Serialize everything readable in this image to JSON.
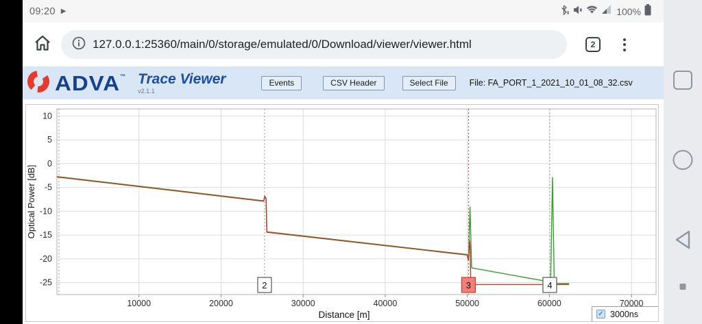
{
  "status_bar": {
    "time": "09:20",
    "play_glyph": "▶",
    "battery_percent": "100%",
    "icons": [
      "bluetooth-disabled-icon",
      "vibrate-mute-icon",
      "wifi-icon",
      "cell-signal-icon",
      "battery-icon"
    ]
  },
  "browser": {
    "url": "127.0.0.1:25360/main/0/storage/emulated/0/Download/viewer/viewer.html",
    "tab_count": "2"
  },
  "app_header": {
    "brand": "ADVA",
    "brand_tm": "™",
    "title": "Trace Viewer",
    "version": "v2.1.1",
    "buttons": [
      {
        "label": "Events"
      },
      {
        "label": "CSV Header"
      },
      {
        "label": "Select File"
      }
    ],
    "file_label": "File: FA_PORT_1_2021_10_01_08_32.csv",
    "background": "#d9e6f6",
    "brand_color": "#16418c",
    "logo_color": "#e63a2e"
  },
  "chart_data": {
    "type": "line",
    "xlabel": "Distance [m]",
    "ylabel": "Optical Power [dB]",
    "xlim": [
      0,
      73000
    ],
    "ylim": [
      -27.5,
      11.5
    ],
    "xticks": [
      10000,
      20000,
      30000,
      40000,
      50000,
      60000,
      70000
    ],
    "yticks": [
      10,
      5,
      0,
      -5,
      -10,
      -15,
      -20,
      -25
    ],
    "grid": true,
    "legend_position": "none",
    "series": [
      {
        "name": "trace-green",
        "color": "#33a02c",
        "points": [
          [
            0,
            -2.7
          ],
          [
            25200,
            -7.8
          ],
          [
            25320,
            -6.8
          ],
          [
            25480,
            -7.3
          ],
          [
            25580,
            -14.3
          ],
          [
            50000,
            -19.1
          ],
          [
            50150,
            -19.9
          ],
          [
            50330,
            -9.1
          ],
          [
            50530,
            -21.9
          ],
          [
            59900,
            -24.8
          ],
          [
            60150,
            -24.9
          ],
          [
            60380,
            -2.9
          ],
          [
            60600,
            -25.2
          ],
          [
            62400,
            -25.2
          ]
        ]
      },
      {
        "name": "trace-red",
        "color": "#bc3a28",
        "points": [
          [
            0,
            -2.8
          ],
          [
            25200,
            -7.9
          ],
          [
            25320,
            -6.9
          ],
          [
            25480,
            -7.4
          ],
          [
            25580,
            -14.4
          ],
          [
            50000,
            -19.2
          ],
          [
            50130,
            -20.3
          ],
          [
            50270,
            -16.2
          ],
          [
            50330,
            -17.4
          ],
          [
            50430,
            -25.4
          ],
          [
            62400,
            -25.4
          ]
        ]
      }
    ],
    "events": [
      {
        "id": "1",
        "x": 250,
        "label_visible": false,
        "selected": false
      },
      {
        "id": "2",
        "x": 25300,
        "label_visible": true,
        "selected": false
      },
      {
        "id": "3",
        "x": 50150,
        "label_visible": true,
        "selected": true
      },
      {
        "id": "4",
        "x": 60050,
        "label_visible": true,
        "selected": false
      }
    ],
    "colors": {
      "grid": "#dcdcdc",
      "plot_border": "#b0b0b0",
      "event_line": "#9a9a9a",
      "event_line_selected": "#cf3a2d",
      "event_box_fill": "#ffffff",
      "event_box_border": "#555555",
      "event_box_selected_fill": "#f0807a",
      "event_box_selected_border": "#cf3a2d",
      "axis_text": "#2b2b2b"
    }
  },
  "chart_footer": {
    "pulse_label": "3000ns",
    "pulse_checked": true,
    "check_glyph": "✓"
  },
  "nav_bar": {
    "buttons": [
      "recents-button",
      "home-button",
      "back-button",
      "hide-dot-button"
    ]
  }
}
